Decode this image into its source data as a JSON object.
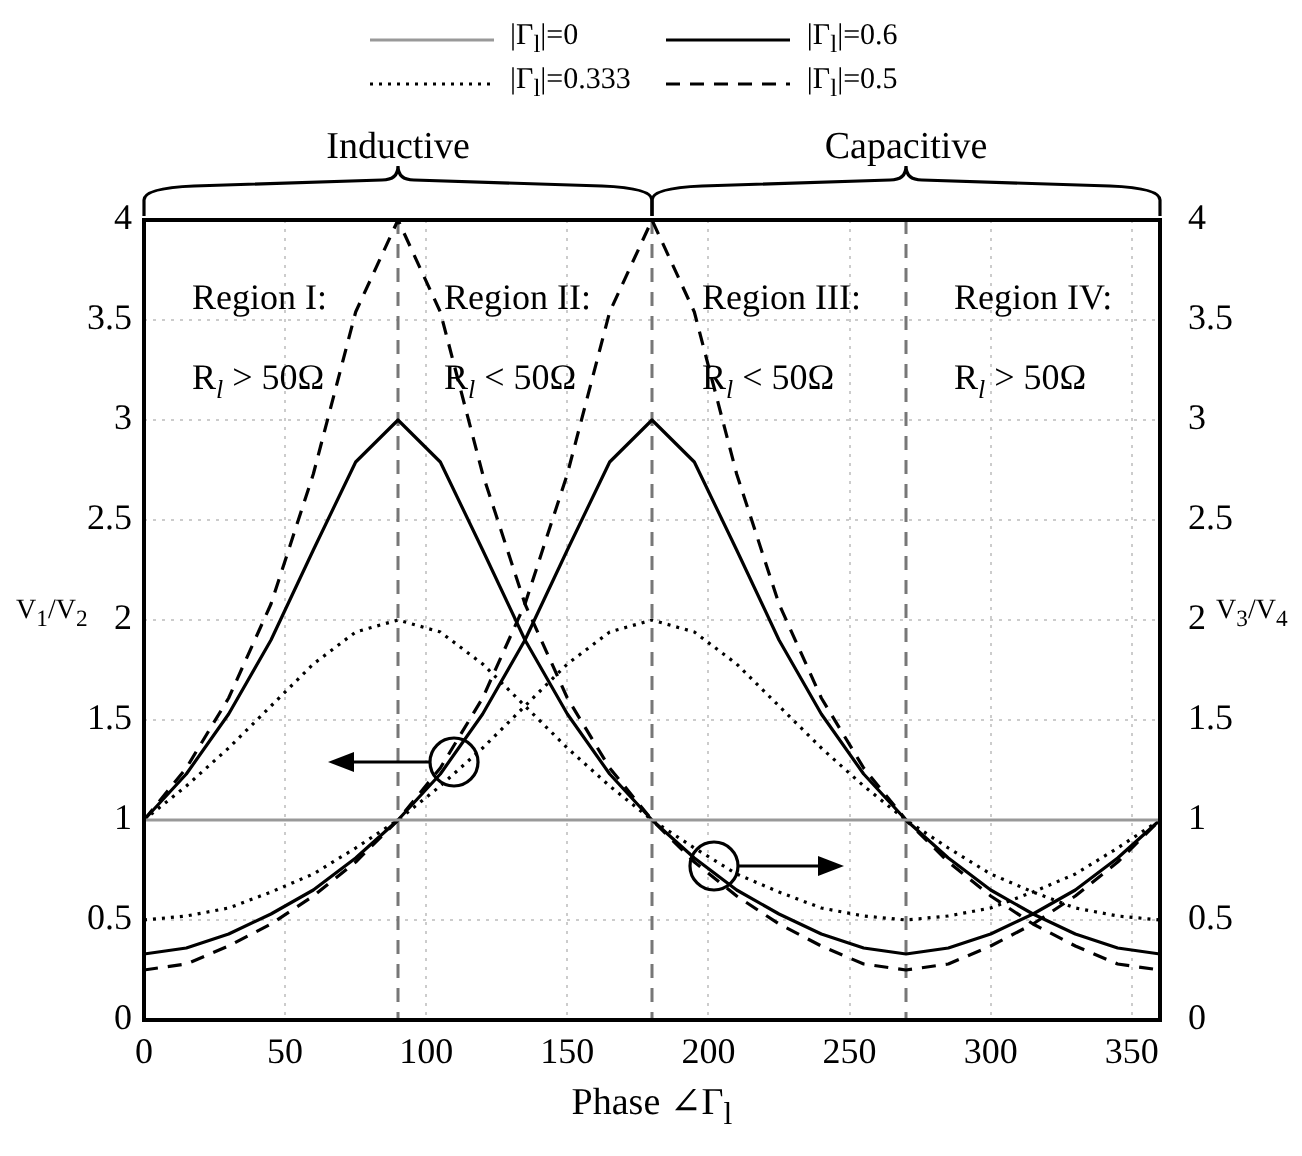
{
  "chart_data": {
    "type": "line",
    "xlabel": "Phase ∠Γ$_{l}$",
    "ylabel": "V$_{1}$/V$_{2}$",
    "y2label": "V$_{3}$/V$_{4}$",
    "x": [
      0,
      15,
      30,
      45,
      60,
      75,
      90,
      105,
      120,
      135,
      150,
      165,
      180,
      195,
      210,
      225,
      240,
      255,
      270,
      285,
      300,
      315,
      330,
      345,
      360
    ],
    "xlim": [
      0,
      360
    ],
    "xticks": [
      0,
      50,
      100,
      150,
      200,
      250,
      300,
      350
    ],
    "ylim": [
      0,
      4
    ],
    "yticks": [
      0,
      0.5,
      1,
      1.5,
      2,
      2.5,
      3,
      3.5,
      4
    ],
    "y2lim": [
      0,
      4
    ],
    "y2ticks": [
      0,
      0.5,
      1,
      1.5,
      2,
      2.5,
      3,
      3.5,
      4
    ],
    "grid": true,
    "legend": "top",
    "marker": "none",
    "series": [
      {
        "name": "|Γ$_{l}$|=0",
        "color": "#999999",
        "line_style": "solid",
        "x": [
          0,
          360
        ],
        "values": [
          1,
          1
        ]
      },
      {
        "name": "|Γ$_{l}$|=0.333",
        "color": "#000000",
        "line_style": "dotted",
        "values": [
          1,
          1.17,
          1.36,
          1.57,
          1.78,
          1.94,
          2,
          1.94,
          1.78,
          1.57,
          1.36,
          1.17,
          1,
          0.86,
          0.73,
          0.64,
          0.56,
          0.52,
          0.5,
          0.52,
          0.56,
          0.64,
          0.73,
          0.86,
          1
        ]
      },
      {
        "name": "|Γ$_{l}$|=0.6",
        "color": "#000000",
        "line_style": "solid",
        "values": [
          1,
          1.23,
          1.53,
          1.9,
          2.35,
          2.79,
          3,
          2.79,
          2.35,
          1.9,
          1.53,
          1.23,
          1,
          0.81,
          0.65,
          0.53,
          0.43,
          0.36,
          0.33,
          0.36,
          0.43,
          0.53,
          0.65,
          0.81,
          1
        ]
      },
      {
        "name": "|Γ$_{l}$|=0.5",
        "color": "#000000",
        "line_style": "dashed",
        "values": [
          1,
          1.26,
          1.61,
          2.08,
          2.73,
          3.54,
          4,
          3.54,
          2.73,
          2.08,
          1.61,
          1.26,
          1,
          0.79,
          0.62,
          0.48,
          0.37,
          0.28,
          0.25,
          0.28,
          0.37,
          0.48,
          0.62,
          0.79,
          1
        ]
      },
      {
        "color": "#000000",
        "line_style": "dotted",
        "axis": "y2",
        "values": [
          0.5,
          0.52,
          0.56,
          0.64,
          0.73,
          0.86,
          1,
          1.17,
          1.36,
          1.57,
          1.78,
          1.94,
          2,
          1.94,
          1.78,
          1.57,
          1.36,
          1.17,
          1,
          0.86,
          0.73,
          0.64,
          0.56,
          0.52,
          0.5
        ]
      },
      {
        "color": "#000000",
        "line_style": "solid",
        "axis": "y2",
        "values": [
          0.33,
          0.36,
          0.43,
          0.53,
          0.65,
          0.81,
          1,
          1.23,
          1.53,
          1.9,
          2.35,
          2.79,
          3,
          2.79,
          2.35,
          1.9,
          1.53,
          1.23,
          1,
          0.81,
          0.65,
          0.53,
          0.43,
          0.36,
          0.33
        ]
      },
      {
        "color": "#000000",
        "line_style": "dashed",
        "axis": "y2",
        "values": [
          0.25,
          0.28,
          0.37,
          0.48,
          0.62,
          0.79,
          1,
          1.26,
          1.61,
          2.08,
          2.73,
          3.54,
          4,
          3.54,
          2.73,
          2.08,
          1.61,
          1.26,
          1,
          0.79,
          0.62,
          0.48,
          0.37,
          0.28,
          0.25
        ]
      }
    ],
    "ref_lines": [
      {
        "axis": "x",
        "value": 90,
        "color": "#777777",
        "line_style": "dashed"
      },
      {
        "axis": "x",
        "value": 180,
        "color": "#777777",
        "line_style": "dashed"
      },
      {
        "axis": "x",
        "value": 270,
        "color": "#777777",
        "line_style": "dashed"
      }
    ],
    "annotations": [
      "Inductive",
      "Capacitive",
      "Region I:",
      "R$_{l}$ > 50Ω",
      "Region II:",
      "R$_{l}$ < 50Ω",
      "Region III:",
      "R$_{l}$ < 50Ω",
      "Region IV:",
      "R$_{l}$ > 50Ω"
    ]
  }
}
